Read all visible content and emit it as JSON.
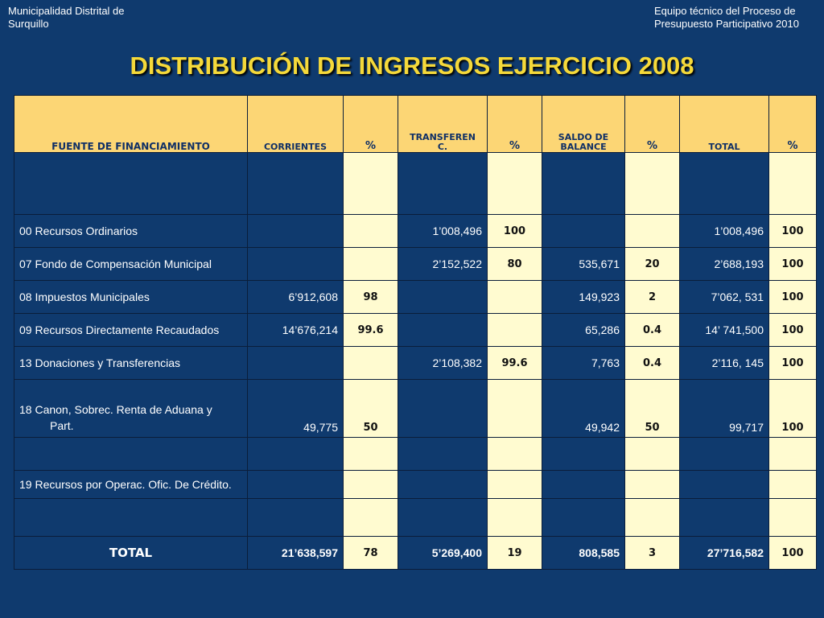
{
  "header": {
    "left_line1": "Municipalidad Distrital de",
    "left_line2": "Surquillo",
    "right_line1": "Equipo técnico del Proceso de",
    "right_line2": "Presupuesto Participativo 2010"
  },
  "title": "DISTRIBUCIÓN DE INGRESOS EJERCICIO 2008",
  "columns": {
    "fuente": "FUENTE DE FINANCIAMIENTO",
    "corrientes": "CORRIENTES",
    "pct": "%",
    "transf_line1": "TRANSFEREN",
    "transf_line2": "C.",
    "saldo_line1": "SALDO DE",
    "saldo_line2": "BALANCE",
    "total": "TOTAL"
  },
  "rows": [
    {
      "name": "00 Recursos Ordinarios",
      "corrientes": "",
      "pct_corr": "",
      "transf": "1’008,496",
      "pct_transf": "100",
      "saldo": "",
      "pct_saldo": "",
      "total": "1’008,496",
      "pct_total": "100"
    },
    {
      "name": "07 Fondo de Compensación Municipal",
      "corrientes": "",
      "pct_corr": "",
      "transf": "2’152,522",
      "pct_transf": "80",
      "saldo": "535,671",
      "pct_saldo": "20",
      "total": "2’688,193",
      "pct_total": "100"
    },
    {
      "name": "08 Impuestos Municipales",
      "corrientes": "6’912,608",
      "pct_corr": "98",
      "transf": "",
      "pct_transf": "",
      "saldo": "149,923",
      "pct_saldo": "2",
      "total": "7’062, 531",
      "pct_total": "100"
    },
    {
      "name": "09 Recursos Directamente Recaudados",
      "corrientes": "14’676,214",
      "pct_corr": "99.6",
      "transf": "",
      "pct_transf": "",
      "saldo": "65,286",
      "pct_saldo": "0.4",
      "total": "14’ 741,500",
      "pct_total": "100"
    },
    {
      "name": "13 Donaciones y Transferencias",
      "corrientes": "",
      "pct_corr": "",
      "transf": "2’108,382",
      "pct_transf": "99.6",
      "saldo": "7,763",
      "pct_saldo": "0.4",
      "total": "2’116, 145",
      "pct_total": "100"
    },
    {
      "name_line1": "18 Canon, Sobrec. Renta de Aduana y",
      "name_line2": "Part.",
      "corrientes": "49,775",
      "pct_corr": "50",
      "transf": "",
      "pct_transf": "",
      "saldo": "49,942",
      "pct_saldo": "50",
      "total": "99,717",
      "pct_total": "100"
    },
    {
      "name": "19 Recursos por Operac. Ofic. De Crédito."
    }
  ],
  "total_row": {
    "label": "TOTAL",
    "corrientes": "21’638,597",
    "pct_corr": "78",
    "transf": "5’269,400",
    "pct_transf": "19",
    "saldo": "808,585",
    "pct_saldo": "3",
    "total": "27’716,582",
    "pct_total": "100"
  }
}
